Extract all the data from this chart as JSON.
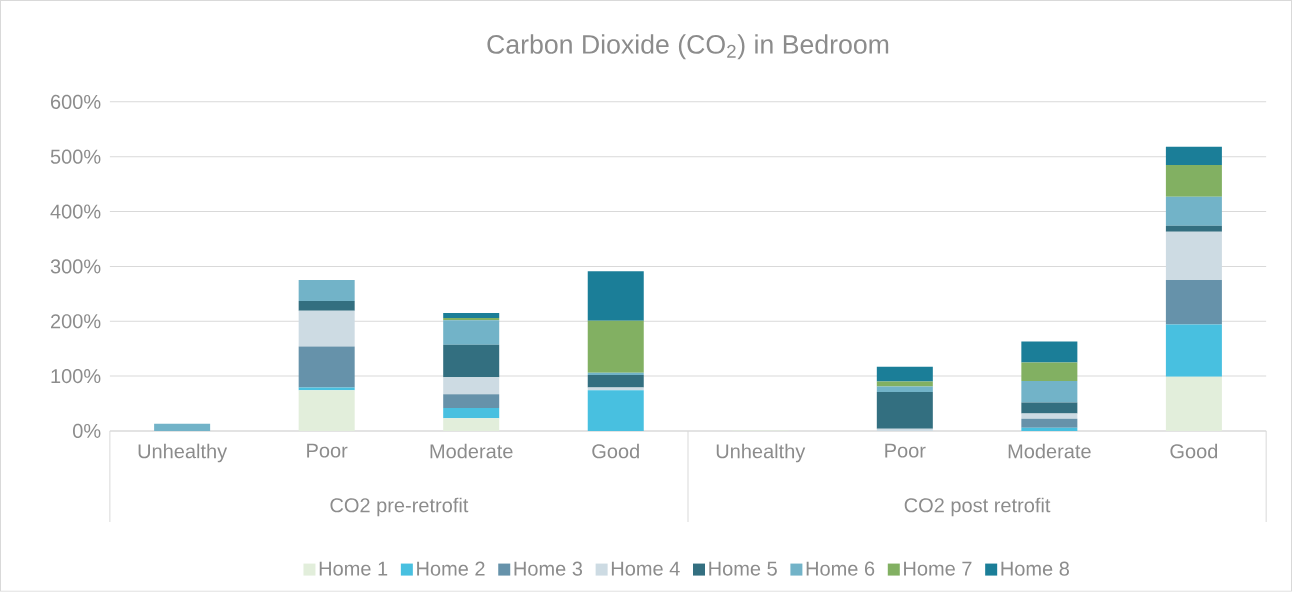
{
  "chart_data": {
    "type": "bar",
    "stacked": true,
    "title": "Carbon Dioxide (CO$_{2}$) in Bedroom",
    "categories": [
      "Unhealthy",
      "Poor",
      "Moderate",
      "Good",
      "Unhealthy",
      "Poor",
      "Moderate",
      "Good"
    ],
    "annotations": [
      "CO2 pre-retrofit",
      "CO2 post retrofit"
    ],
    "ylim": [
      0,
      600
    ],
    "yticks": [
      {
        "value": 0,
        "label": "0%"
      },
      {
        "value": 100,
        "label": "100%"
      },
      {
        "value": 200,
        "label": "200%"
      },
      {
        "value": 300,
        "label": "300%"
      },
      {
        "value": 400,
        "label": "400%"
      },
      {
        "value": 500,
        "label": "500%"
      },
      {
        "value": 600,
        "label": "600%"
      }
    ],
    "grid": "y",
    "legend": "bottom",
    "series": [
      {
        "name": "Home 1",
        "color": "#e2eedb",
        "values": [
          0,
          74,
          23,
          0,
          1,
          0,
          0,
          99
        ]
      },
      {
        "name": "Home 2",
        "color": "#48c0e0",
        "values": [
          0,
          5,
          19,
          74,
          0,
          0,
          6,
          95
        ]
      },
      {
        "name": "Home 3",
        "color": "#6692aa",
        "values": [
          0,
          75,
          25,
          0,
          0,
          0,
          16,
          81
        ]
      },
      {
        "name": "Home 4",
        "color": "#cddbe3",
        "values": [
          0,
          65,
          31,
          5,
          0,
          4,
          10,
          88
        ]
      },
      {
        "name": "Home 5",
        "color": "#336f80",
        "values": [
          0,
          18,
          59,
          23,
          0,
          67,
          20,
          11
        ]
      },
      {
        "name": "Home 6",
        "color": "#72b3c8",
        "values": [
          13,
          38,
          45,
          4,
          0,
          10,
          39,
          53
        ]
      },
      {
        "name": "Home 7",
        "color": "#82b062",
        "values": [
          0,
          0,
          4,
          95,
          0,
          9,
          34,
          58
        ]
      },
      {
        "name": "Home 8",
        "color": "#1b7e98",
        "values": [
          0,
          0,
          9,
          90,
          0,
          27,
          38,
          33
        ]
      }
    ]
  }
}
